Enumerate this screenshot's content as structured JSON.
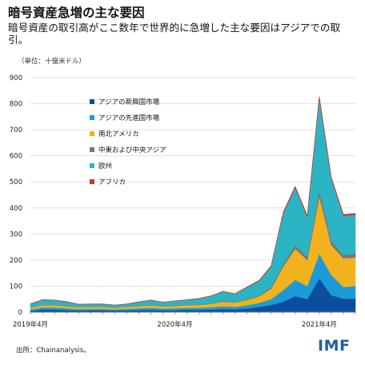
{
  "header": {
    "title": "暗号資産急増の主な要因",
    "subtitle": "暗号資産の取引高がここ数年で世界的に急増した主な要因はアジアでの取引。",
    "unit": "（単位：十億米ドル）"
  },
  "footer": {
    "source": "出所：Chainanalysis。",
    "logo": "IMF"
  },
  "colors": {
    "series": [
      "#0b4f9c",
      "#1a9ad6",
      "#f2b21d",
      "#787878",
      "#2bb5c4",
      "#c8372d"
    ],
    "grid": "#e2e2e2",
    "axis": "#7f7f7f"
  },
  "chart_data": {
    "type": "area",
    "stacked": true,
    "title": "暗号資産急増の主な要因",
    "ylabel": "（単位：十億米ドル）",
    "ylim": [
      0,
      900
    ],
    "yticks": [
      0,
      100,
      200,
      300,
      400,
      500,
      600,
      700,
      800,
      900
    ],
    "xtick_labels": [
      {
        "index": 0,
        "label": "2019年4月"
      },
      {
        "index": 12,
        "label": "2020年4月"
      },
      {
        "index": 24,
        "label": "2021年4月"
      }
    ],
    "grid": true,
    "legend": "upper-left",
    "x": [
      "2019-04",
      "2019-05",
      "2019-06",
      "2019-07",
      "2019-08",
      "2019-09",
      "2019-10",
      "2019-11",
      "2019-12",
      "2020-01",
      "2020-02",
      "2020-03",
      "2020-04",
      "2020-05",
      "2020-06",
      "2020-07",
      "2020-08",
      "2020-09",
      "2020-10",
      "2020-11",
      "2020-12",
      "2021-01",
      "2021-02",
      "2021-03",
      "2021-04",
      "2021-05",
      "2021-06",
      "2021-07"
    ],
    "series": [
      {
        "name": "アジアの新興国市場",
        "values": [
          5,
          10,
          10,
          8,
          6,
          7,
          7,
          6,
          7,
          8,
          9,
          7,
          8,
          9,
          9,
          10,
          12,
          11,
          14,
          20,
          28,
          40,
          62,
          50,
          130,
          65,
          52,
          52
        ]
      },
      {
        "name": "アジアの先進国市場",
        "values": [
          5,
          8,
          8,
          7,
          6,
          6,
          6,
          5,
          6,
          7,
          8,
          7,
          7,
          8,
          8,
          9,
          11,
          10,
          13,
          16,
          22,
          45,
          62,
          50,
          95,
          78,
          45,
          48
        ]
      },
      {
        "name": "南北アメリカ",
        "values": [
          6,
          9,
          9,
          8,
          7,
          7,
          7,
          6,
          7,
          8,
          9,
          8,
          9,
          10,
          11,
          13,
          18,
          16,
          20,
          25,
          40,
          90,
          120,
          100,
          220,
          115,
          110,
          110
        ]
      },
      {
        "name": "中東および中央アジア",
        "values": [
          1,
          2,
          2,
          2,
          1,
          1,
          1,
          1,
          1,
          2,
          2,
          1,
          2,
          2,
          2,
          2,
          3,
          2,
          3,
          4,
          6,
          10,
          14,
          12,
          25,
          15,
          13,
          14
        ]
      },
      {
        "name": "欧州",
        "values": [
          15,
          18,
          17,
          15,
          10,
          10,
          10,
          9,
          10,
          14,
          18,
          15,
          17,
          18,
          22,
          28,
          35,
          31,
          46,
          55,
          80,
          195,
          220,
          155,
          350,
          240,
          150,
          150
        ]
      },
      {
        "name": "アフリカ",
        "values": [
          0.5,
          0.8,
          0.8,
          0.7,
          0.5,
          0.5,
          0.5,
          0.5,
          0.5,
          0.6,
          0.8,
          0.6,
          0.7,
          0.8,
          0.9,
          1,
          1.2,
          1.1,
          1.4,
          1.8,
          2.5,
          4,
          5,
          4,
          8,
          5,
          5,
          5
        ]
      }
    ]
  }
}
